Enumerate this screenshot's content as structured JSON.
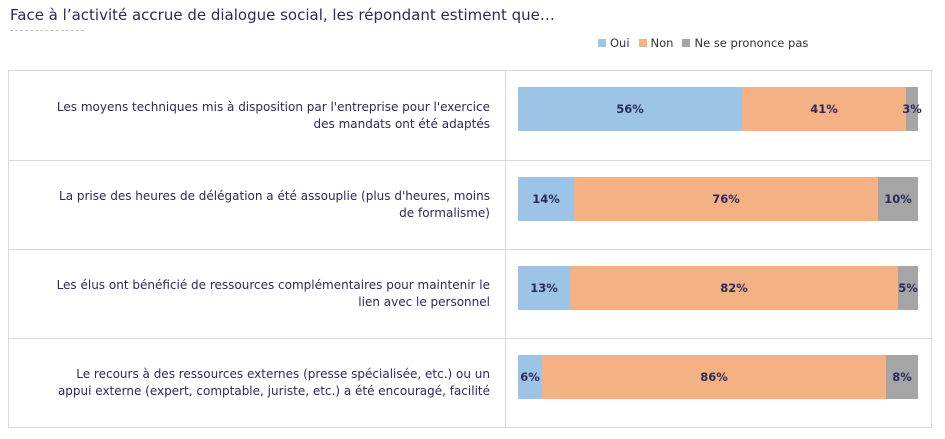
{
  "title": "Face à l’activité accrue de dialogue social, les répondant estiment que…",
  "chart_data": {
    "type": "bar",
    "orientation": "horizontal",
    "stacked": true,
    "normalized": true,
    "legend": {
      "position": "top-right"
    },
    "series": [
      {
        "name": "Oui",
        "color": "#9dc3e6",
        "values": [
          56,
          14,
          13,
          6
        ]
      },
      {
        "name": "Non",
        "color": "#f4b183",
        "values": [
          41,
          76,
          82,
          86
        ]
      },
      {
        "name": "Ne se prononce pas",
        "color": "#a5a5a5",
        "values": [
          3,
          10,
          5,
          8
        ]
      }
    ],
    "labels": [
      [
        "56%",
        "41%",
        "3%"
      ],
      [
        "14%",
        "76%",
        "10%"
      ],
      [
        "13%",
        "82%",
        "5%"
      ],
      [
        "6%",
        "86%",
        "8%"
      ]
    ],
    "categories": [
      "Les moyens techniques mis à disposition par l'entreprise pour l'exercice des mandats ont été adaptés",
      "La prise des heures de délégation a été assouplie (plus d'heures, moins de formalisme)",
      "Les élus ont bénéficié de ressources complémentaires pour maintenir le lien avec le personnel",
      "Le recours à des ressources externes (presse spécialisée, etc.) ou un appui externe (expert, comptable, juriste, etc.) a été encouragé, facilité"
    ],
    "category_lines": [
      [
        "Les moyens techniques mis à disposition par l'entreprise pour l'exercice",
        "des mandats ont été adaptés"
      ],
      [
        "La prise des heures de délégation a été assouplie (plus d'heures, moins",
        "de formalisme)"
      ],
      [
        "Les élus ont bénéficié de ressources complémentaires pour maintenir le",
        "lien avec le personnel"
      ],
      [
        "Le recours à des ressources externes (presse spécialisée, etc.) ou un",
        "appui externe (expert, comptable, juriste, etc.) a été encouragé, facilité"
      ]
    ],
    "xlim": [
      0,
      100
    ]
  }
}
